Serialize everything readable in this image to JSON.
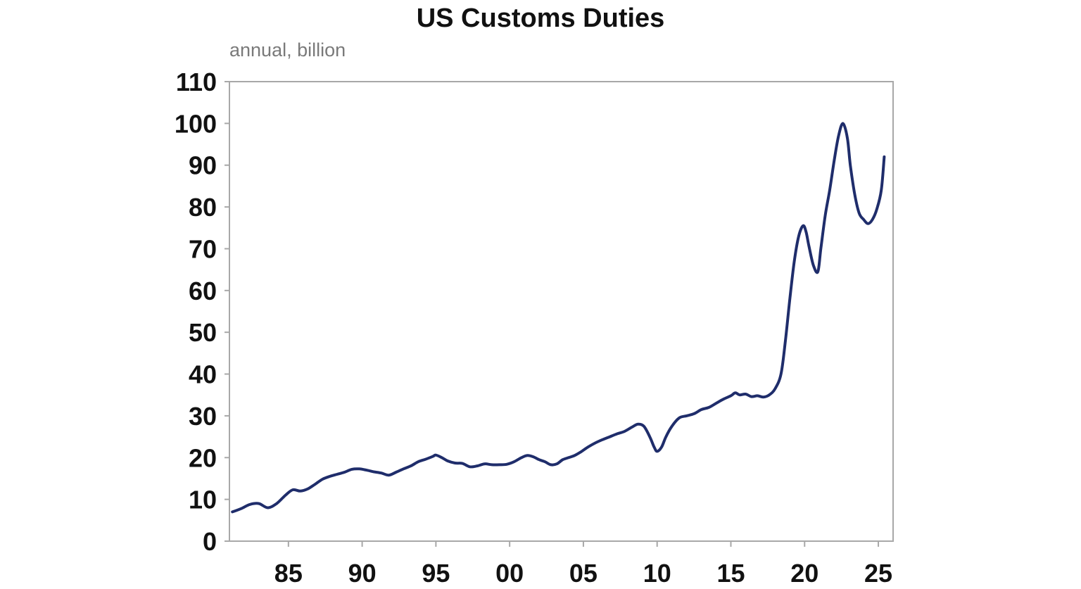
{
  "chart_data": {
    "type": "line",
    "title": "US Customs Duties",
    "subtitle": "annual, billion",
    "xlabel": "",
    "ylabel": "",
    "ylim": [
      0,
      110
    ],
    "xlim": [
      1981.0,
      2026.0
    ],
    "yticks": [
      0,
      10,
      20,
      30,
      40,
      50,
      60,
      70,
      80,
      90,
      100,
      110
    ],
    "xticks": [
      {
        "value": 1985,
        "label": "85"
      },
      {
        "value": 1990,
        "label": "90"
      },
      {
        "value": 1995,
        "label": "95"
      },
      {
        "value": 2000,
        "label": "00"
      },
      {
        "value": 2005,
        "label": "05"
      },
      {
        "value": 2010,
        "label": "10"
      },
      {
        "value": 2015,
        "label": "15"
      },
      {
        "value": 2020,
        "label": "20"
      },
      {
        "value": 2025,
        "label": "25"
      }
    ],
    "grid": false,
    "series": [
      {
        "name": "US Customs Duties",
        "color": "#1f2d6b",
        "x": [
          1981.2,
          1981.8,
          1982.4,
          1983.0,
          1983.6,
          1984.2,
          1984.8,
          1985.3,
          1985.8,
          1986.3,
          1986.8,
          1987.3,
          1987.8,
          1988.3,
          1988.8,
          1989.3,
          1989.8,
          1990.3,
          1990.8,
          1991.3,
          1991.8,
          1992.3,
          1992.8,
          1993.3,
          1993.8,
          1994.3,
          1994.8,
          1995.0,
          1995.4,
          1995.8,
          1996.3,
          1996.8,
          1997.3,
          1997.8,
          1998.3,
          1998.8,
          1999.3,
          1999.8,
          2000.3,
          2000.8,
          2001.2,
          2001.6,
          2002.0,
          2002.4,
          2002.8,
          2003.2,
          2003.6,
          2004.0,
          2004.4,
          2004.8,
          2005.3,
          2005.8,
          2006.3,
          2006.8,
          2007.3,
          2007.8,
          2008.3,
          2008.7,
          2009.1,
          2009.5,
          2009.8,
          2010.0,
          2010.3,
          2010.6,
          2011.0,
          2011.5,
          2012.0,
          2012.5,
          2013.0,
          2013.5,
          2014.0,
          2014.5,
          2015.0,
          2015.3,
          2015.6,
          2016.0,
          2016.4,
          2016.8,
          2017.2,
          2017.6,
          2018.0,
          2018.4,
          2018.7,
          2019.0,
          2019.3,
          2019.6,
          2019.9,
          2020.1,
          2020.3,
          2020.6,
          2020.9,
          2021.1,
          2021.4,
          2021.7,
          2022.0,
          2022.3,
          2022.6,
          2022.9,
          2023.1,
          2023.4,
          2023.7,
          2024.0,
          2024.3,
          2024.6,
          2024.9,
          2025.2,
          2025.4
        ],
        "values": [
          7.0,
          7.8,
          8.8,
          9.0,
          8.0,
          9.0,
          11.0,
          12.3,
          12.0,
          12.5,
          13.6,
          14.8,
          15.5,
          16.0,
          16.5,
          17.2,
          17.3,
          17.0,
          16.6,
          16.3,
          15.8,
          16.5,
          17.3,
          18.0,
          19.0,
          19.6,
          20.3,
          20.6,
          20.0,
          19.2,
          18.7,
          18.6,
          17.8,
          18.0,
          18.5,
          18.3,
          18.3,
          18.4,
          19.0,
          20.0,
          20.5,
          20.2,
          19.5,
          19.0,
          18.3,
          18.5,
          19.5,
          20.0,
          20.5,
          21.3,
          22.5,
          23.5,
          24.3,
          25.0,
          25.7,
          26.3,
          27.3,
          28.0,
          27.5,
          25.0,
          22.5,
          21.5,
          22.5,
          25.0,
          27.5,
          29.5,
          30.0,
          30.5,
          31.5,
          32.0,
          33.0,
          34.0,
          34.8,
          35.5,
          35.0,
          35.2,
          34.6,
          34.8,
          34.5,
          35.0,
          36.5,
          40.0,
          48.0,
          58.0,
          67.0,
          73.0,
          75.5,
          74.0,
          70.5,
          66.0,
          64.5,
          70.0,
          78.0,
          84.0,
          91.0,
          97.0,
          100.0,
          96.5,
          90.0,
          83.0,
          78.5,
          77.0,
          76.0,
          77.0,
          79.5,
          84.0,
          92.0
        ]
      }
    ]
  }
}
